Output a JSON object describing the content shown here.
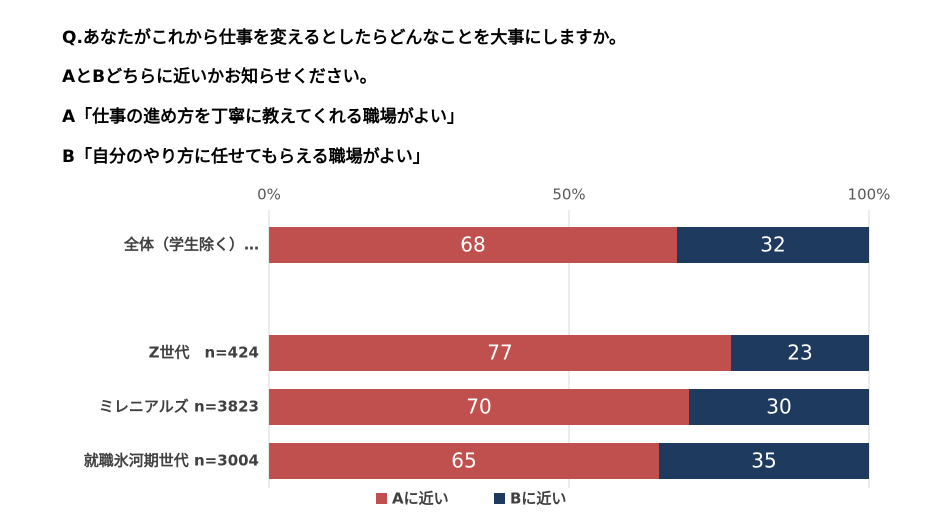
{
  "chart_data": {
    "type": "stacked_barh",
    "title": [
      "Q.あなたがこれから仕事を変えるとしたらどんなことを大事にしますか。",
      "AとBどちらに近いかお知らせください。",
      "A「仕事の進め方を丁寧に教えてくれる職場がよい」",
      "B「自分のやり方に任せてもらえる職場がよい」"
    ],
    "categories": [
      "全体（学生除く）…",
      null,
      "Z世代　n=424",
      "ミレニアルズ n=3823",
      "就職氷河期世代 n=3004"
    ],
    "series": [
      {
        "name": "Aに近い",
        "color": "#c0504d",
        "values": [
          68,
          null,
          77,
          70,
          65
        ]
      },
      {
        "name": "Bに近い",
        "color": "#1f3a5f",
        "values": [
          32,
          null,
          23,
          30,
          35
        ]
      }
    ],
    "xlim": [
      0,
      100
    ],
    "xticks": [
      {
        "value": 0,
        "label": "0%"
      },
      {
        "value": 50,
        "label": "50%"
      },
      {
        "value": 100,
        "label": "100%"
      }
    ],
    "grid": true,
    "legend": "bottom"
  }
}
